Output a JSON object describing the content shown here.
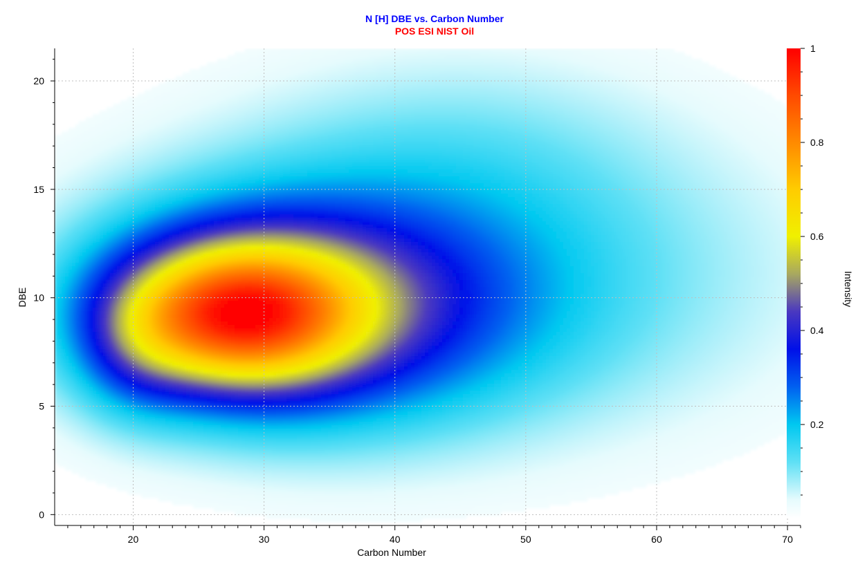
{
  "chart_data": {
    "type": "heatmap",
    "title": "N [H] DBE vs. Carbon Number",
    "subtitle": "POS ESI NIST Oil",
    "xlabel": "Carbon Number",
    "ylabel": "DBE",
    "colorbar_label": "Intensity",
    "xlim": [
      14,
      71
    ],
    "ylim": [
      -0.5,
      21.5
    ],
    "x_ticks": [
      20,
      30,
      40,
      50,
      60,
      70
    ],
    "y_ticks": [
      0,
      5,
      10,
      15,
      20
    ],
    "colorbar_range": [
      0,
      1
    ],
    "colorbar_ticks": [
      0.2,
      0.4,
      0.6,
      0.8,
      1
    ],
    "colorbar_tick_labels": [
      "0.2",
      "0.4",
      "0.6",
      "0.8",
      "1"
    ],
    "grid": true,
    "peak": {
      "carbon_number": 26,
      "dbe": 9,
      "intensity": 1
    },
    "components": [
      {
        "cx": 27.5,
        "cy": 9.2,
        "sx": 6.5,
        "sy": 2.4,
        "amp": 0.6
      },
      {
        "cx": 33,
        "cy": 9.5,
        "sx": 11,
        "sy": 3.6,
        "amp": 0.38
      },
      {
        "cx": 46,
        "cy": 11,
        "sx": 17,
        "sy": 5.2,
        "amp": 0.14
      },
      {
        "cx": 20,
        "cy": 7.5,
        "sx": 3,
        "sy": 2.2,
        "amp": 0.1
      },
      {
        "cx": 45,
        "cy": 17,
        "sx": 11,
        "sy": 3.5,
        "amp": 0.05
      }
    ],
    "colorscale": [
      {
        "v": 0.0,
        "color": "#ffffff"
      },
      {
        "v": 0.04,
        "color": "#e6fbfd"
      },
      {
        "v": 0.12,
        "color": "#5fe0f5"
      },
      {
        "v": 0.2,
        "color": "#00c8f0"
      },
      {
        "v": 0.28,
        "color": "#0060f0"
      },
      {
        "v": 0.36,
        "color": "#0010e8"
      },
      {
        "v": 0.44,
        "color": "#4a38c0"
      },
      {
        "v": 0.52,
        "color": "#a8a860"
      },
      {
        "v": 0.6,
        "color": "#f0f000"
      },
      {
        "v": 0.7,
        "color": "#ffcc00"
      },
      {
        "v": 0.8,
        "color": "#ff8a00"
      },
      {
        "v": 0.9,
        "color": "#ff4a00"
      },
      {
        "v": 1.0,
        "color": "#ff0000"
      }
    ],
    "colors": {
      "title": "#0000ff",
      "subtitle": "#ff0000",
      "grid": "#bfbfbf",
      "axis": "#000000"
    }
  }
}
